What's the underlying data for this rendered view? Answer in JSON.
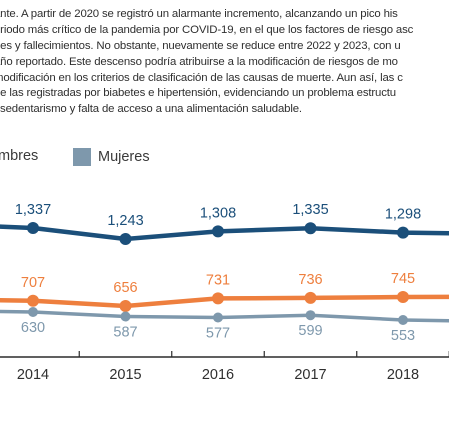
{
  "paragraph": {
    "lines": [
      "ante. A partir de 2020 se registró un alarmante incremento, alcanzando un pico his",
      "eriodo más crítico de la pandemia por COVID-19, en el que los factores de riesgo asc",
      "nes y fallecimientos. No obstante, nuevamente se reduce entre 2022 y 2023, con u",
      "año reportado. Este descenso podría atribuirse a la modificación de riesgos de mo",
      "modificación en los criterios de clasificación de las causas de muerte. Aun así, las c",
      "de las registradas por biabetes e hipertensión, evidenciando un problema estructu",
      ", sedentarismo y falta de acceso a una alimentación saludable."
    ]
  },
  "colors": {
    "total": "#1b4f7a",
    "hombres": "#ee7f3e",
    "mujeres": "#7e98ac",
    "axis": "#2b2b2b",
    "text": "#2f2f2f"
  },
  "chart_data": {
    "type": "line",
    "x": [
      "2014",
      "2015",
      "2016",
      "2017",
      "2018"
    ],
    "series": [
      {
        "key": "total",
        "values": [
          1337,
          1243,
          1308,
          1335,
          1298
        ],
        "labels": [
          "1,337",
          "1,243",
          "1,308",
          "1,335",
          "1,298"
        ]
      },
      {
        "key": "hombres",
        "name": "mbres",
        "values": [
          707,
          656,
          731,
          736,
          745
        ],
        "labels": [
          "707",
          "656",
          "731",
          "736",
          "745"
        ]
      },
      {
        "key": "mujeres",
        "name": "Mujeres",
        "values": [
          630,
          587,
          577,
          599,
          553
        ],
        "labels": [
          "630",
          "587",
          "577",
          "599",
          "553"
        ]
      }
    ]
  }
}
